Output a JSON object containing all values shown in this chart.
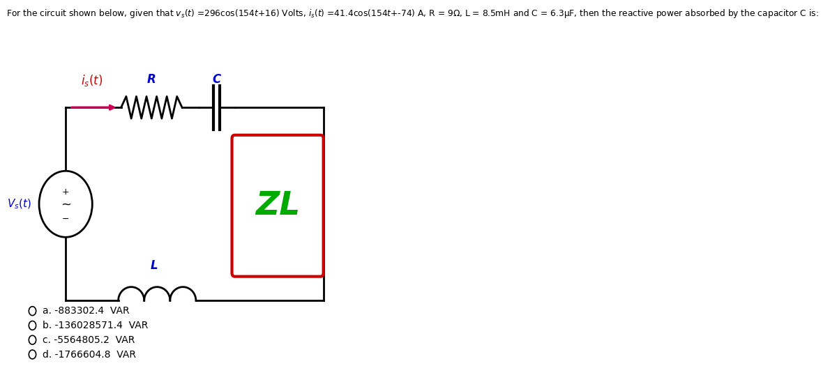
{
  "title": "For the circuit shown below, given that v_s(t) =296cos(154t+16) Volts, i_s(t) =41.4cos(154t+-74) A, R = 9Ω, L = 8.5mH and C = 6.3μF, then the reactive power absorbed by the capacitor C is:",
  "background_color": "#ffffff",
  "options": [
    "a. -883302.4  VAR",
    "b. -136028571.4  VAR",
    "c. -5564805.2  VAR",
    "d. -1766604.8  VAR"
  ],
  "is_color": "#cc0055",
  "is_arrow_color": "#cc0055",
  "is_label_color": "#cc0000",
  "vs_label_color": "#0000cc",
  "R_label_color": "#0000cc",
  "C_label_color": "#0000cc",
  "L_label_color": "#0000cc",
  "ZL_text_color": "#00aa00",
  "ZL_box_color": "#cc0000",
  "wire_color": "#000000"
}
